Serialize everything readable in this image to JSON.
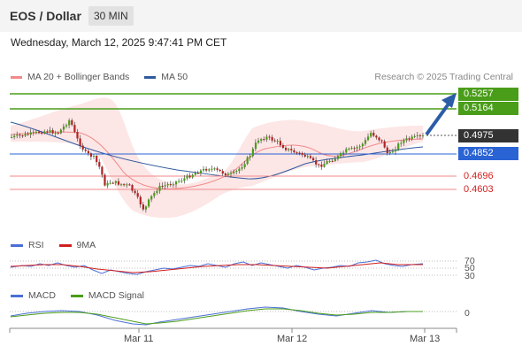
{
  "header": {
    "pair": "EOS / Dollar",
    "timeframe": "30 MIN"
  },
  "timestamp": "Wednesday, March 12, 2025 9:47:41 PM CET",
  "legend": {
    "ma20_label": "MA 20 + Bollinger Bands",
    "ma50_label": "MA 50",
    "ma20_color": "#f08a8a",
    "ma50_color": "#2f5a9e",
    "credit": "Research © 2025 Trading Central"
  },
  "price_levels": [
    {
      "value": "0.5257",
      "style": "fill",
      "color": "#4a9d19"
    },
    {
      "value": "0.5164",
      "style": "fill",
      "color": "#4a9d19"
    },
    {
      "value": "0.4975",
      "style": "fill",
      "color": "#333333"
    },
    {
      "value": "0.4852",
      "style": "fill",
      "color": "#2a63d4"
    },
    {
      "value": "0.4696",
      "style": "text",
      "color": "#d11f1f"
    },
    {
      "value": "0.4603",
      "style": "text",
      "color": "#d11f1f"
    }
  ],
  "rsi": {
    "label": "RSI",
    "ma_label": "9MA",
    "rsi_color": "#4a6fd6",
    "ma_color": "#d11f1f",
    "levels": [
      "70",
      "50",
      "30"
    ]
  },
  "macd": {
    "label": "MACD",
    "signal_label": "MACD Signal",
    "macd_color": "#4a6fd6",
    "signal_color": "#4a9d19",
    "zero_label": "0"
  },
  "x_axis": {
    "labels": [
      "Mar 11",
      "Mar 12",
      "Mar 13"
    ]
  }
}
